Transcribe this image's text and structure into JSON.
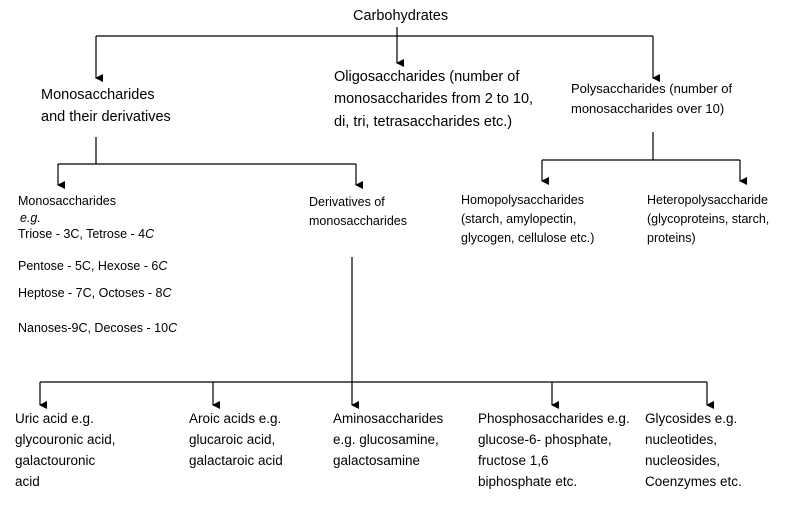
{
  "root": {
    "label": "Carbohydrates"
  },
  "level1": {
    "mono": {
      "lines": [
        "Monosaccharides",
        "and their derivatives"
      ]
    },
    "oligo": {
      "lines": [
        "Oligosaccharides (number of",
        "monosaccharides from 2 to 10,",
        "di, tri, tetrasaccharides etc.)"
      ]
    },
    "poly": {
      "lines": [
        "Polysaccharides (number of",
        "monosaccharides over 10)"
      ]
    }
  },
  "level2": {
    "monosaccharides": {
      "title": "Monosaccharides",
      "eg": "e.g.",
      "rows": [
        {
          "a": "Triose - 3C, Tetrose - 4",
          "b": "C"
        },
        {
          "a": "Pentose - 5C, Hexose - 6",
          "b": "C"
        },
        {
          "a": "Heptose - 7C, Octoses - 8",
          "b": "C"
        },
        {
          "a": "Nanoses-9C, Decoses - 10",
          "b": "C"
        }
      ]
    },
    "derivatives": {
      "lines": [
        "Derivatives of",
        "monosaccharides"
      ]
    },
    "homo": {
      "lines": [
        "Homopolysaccharides",
        "(starch, amylopectin,",
        "glycogen, cellulose etc.)"
      ]
    },
    "hetero": {
      "lines": [
        "Heteropolysaccharide",
        "(glycoproteins, starch,",
        "proteins)"
      ]
    }
  },
  "level3": {
    "uric": {
      "lines": [
        "Uric acid e.g.",
        "glycouronic acid,",
        "galactouronic",
        "acid"
      ]
    },
    "aroic": {
      "lines": [
        "Aroic acids e.g.",
        "glucaroic acid,",
        "galactaroic acid"
      ]
    },
    "amino": {
      "lines": [
        "Aminosaccharides",
        "e.g. glucosamine,",
        "galactosamine"
      ]
    },
    "phospho": {
      "lines": [
        "Phosphosaccharides e.g.",
        "glucose-6- phosphate,",
        "fructose 1,6",
        "biphosphate etc."
      ]
    },
    "glyco": {
      "lines": [
        "Glycosides e.g.",
        "nucleotides,",
        "nucleosides,",
        "Coenzymes etc."
      ]
    }
  },
  "colors": {
    "line": "#000000",
    "text": "#000000",
    "background": "#ffffff"
  }
}
